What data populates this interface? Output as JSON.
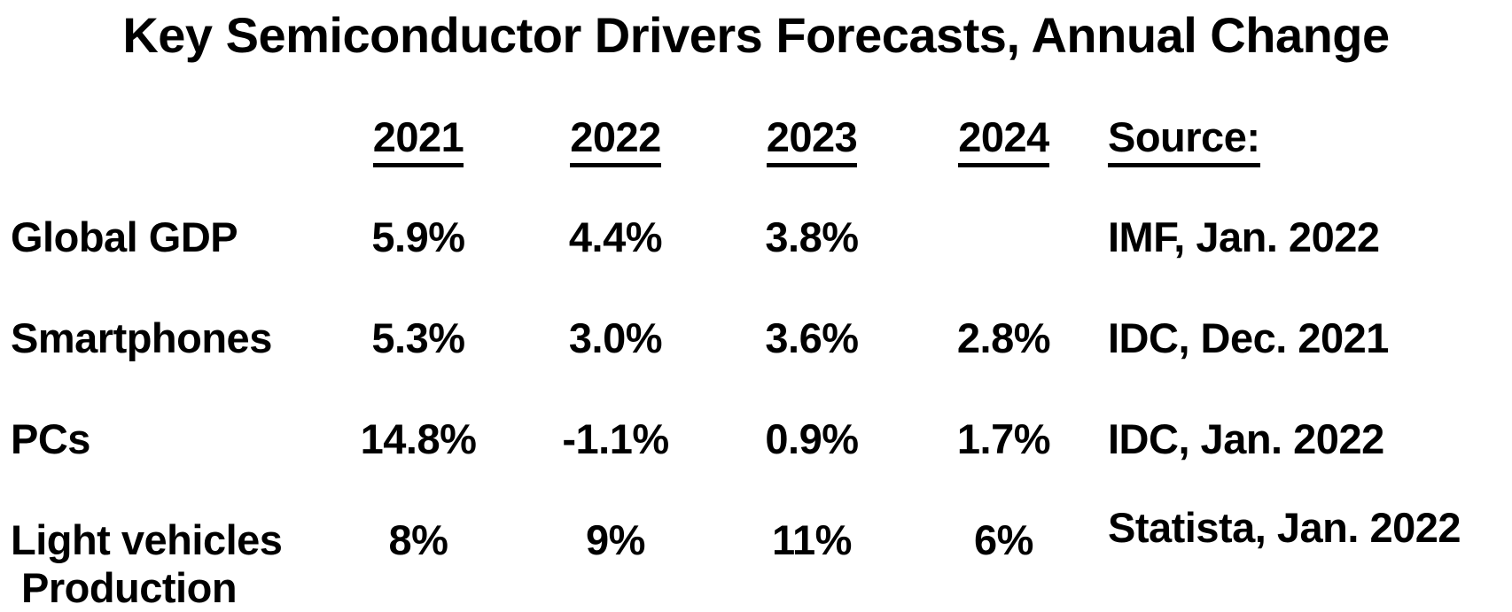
{
  "colors": {
    "background": "#ffffff",
    "text": "#000000"
  },
  "chart_data": {
    "type": "table",
    "title": "Key Semiconductor Drivers Forecasts, Annual Change",
    "year_columns": [
      "2021",
      "2022",
      "2023",
      "2024"
    ],
    "source_column": "Source:",
    "rows": [
      {
        "label": "Global GDP",
        "values": [
          "5.9%",
          "4.4%",
          "3.8%",
          ""
        ],
        "source": "IMF, Jan. 2022"
      },
      {
        "label": "Smartphones",
        "values": [
          "5.3%",
          "3.0%",
          "3.6%",
          "2.8%"
        ],
        "source": "IDC, Dec. 2021"
      },
      {
        "label": "PCs",
        "values": [
          "14.8%",
          "-1.1%",
          "0.9%",
          "1.7%"
        ],
        "source": "IDC, Jan. 2022"
      },
      {
        "label": "Light vehicles Production",
        "values": [
          "8%",
          "9%",
          "11%",
          "6%"
        ],
        "source": "Statista, Jan. 2022"
      }
    ]
  }
}
